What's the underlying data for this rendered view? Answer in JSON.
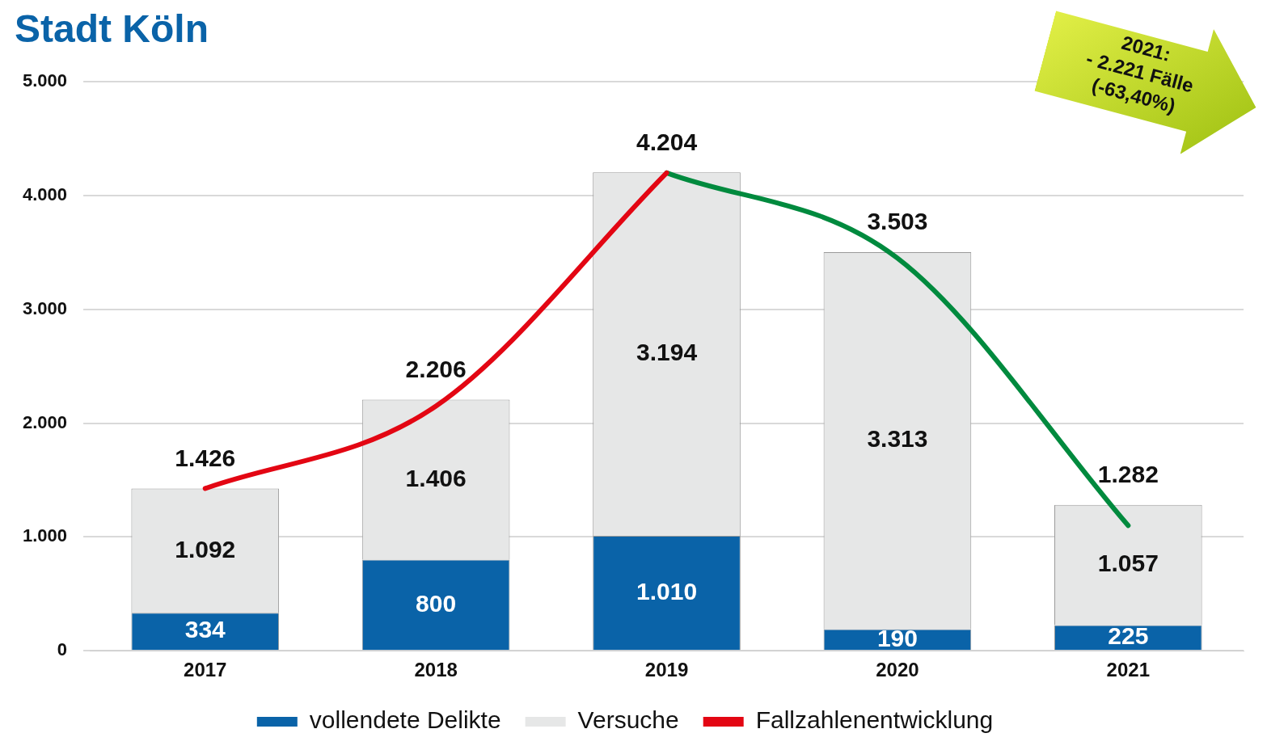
{
  "chart_data": {
    "type": "bar",
    "title": "Stadt Köln",
    "stacked": true,
    "categories": [
      "2017",
      "2018",
      "2019",
      "2020",
      "2021"
    ],
    "series": [
      {
        "name": "vollendete Delikte",
        "color": "#0a63a8",
        "values": [
          334,
          800,
          1010,
          190,
          225
        ],
        "value_labels": [
          "334",
          "800",
          "1.010",
          "190",
          "225"
        ]
      },
      {
        "name": "Versuche",
        "color": "#e6e7e7",
        "values": [
          1092,
          1406,
          3194,
          3313,
          1057
        ],
        "value_labels": [
          "1.092",
          "1.406",
          "3.194",
          "3.313",
          "1.057"
        ]
      },
      {
        "name": "Fallzahlenentwicklung",
        "type": "line",
        "color": "#e30613",
        "values": [
          1426,
          2150,
          4200,
          null,
          null
        ]
      },
      {
        "type": "line",
        "color": "#008a3e",
        "values": [
          null,
          null,
          4200,
          3450,
          1100
        ]
      }
    ],
    "totals": [
      "1.426",
      "2.206",
      "4.204",
      "3.503",
      "1.282"
    ],
    "ylim": [
      0,
      5000
    ],
    "yticks": [
      {
        "value": 0,
        "label": "0"
      },
      {
        "value": 1000,
        "label": "1.000"
      },
      {
        "value": 2000,
        "label": "2.000"
      },
      {
        "value": 3000,
        "label": "3.000"
      },
      {
        "value": 4000,
        "label": "4.000"
      },
      {
        "value": 5000,
        "label": "5.000"
      }
    ],
    "grid": "y",
    "legend": "bottom",
    "marker": "none",
    "annotations": [
      "2021:\n- 2.221 Fälle\n(-63,40%)"
    ]
  }
}
